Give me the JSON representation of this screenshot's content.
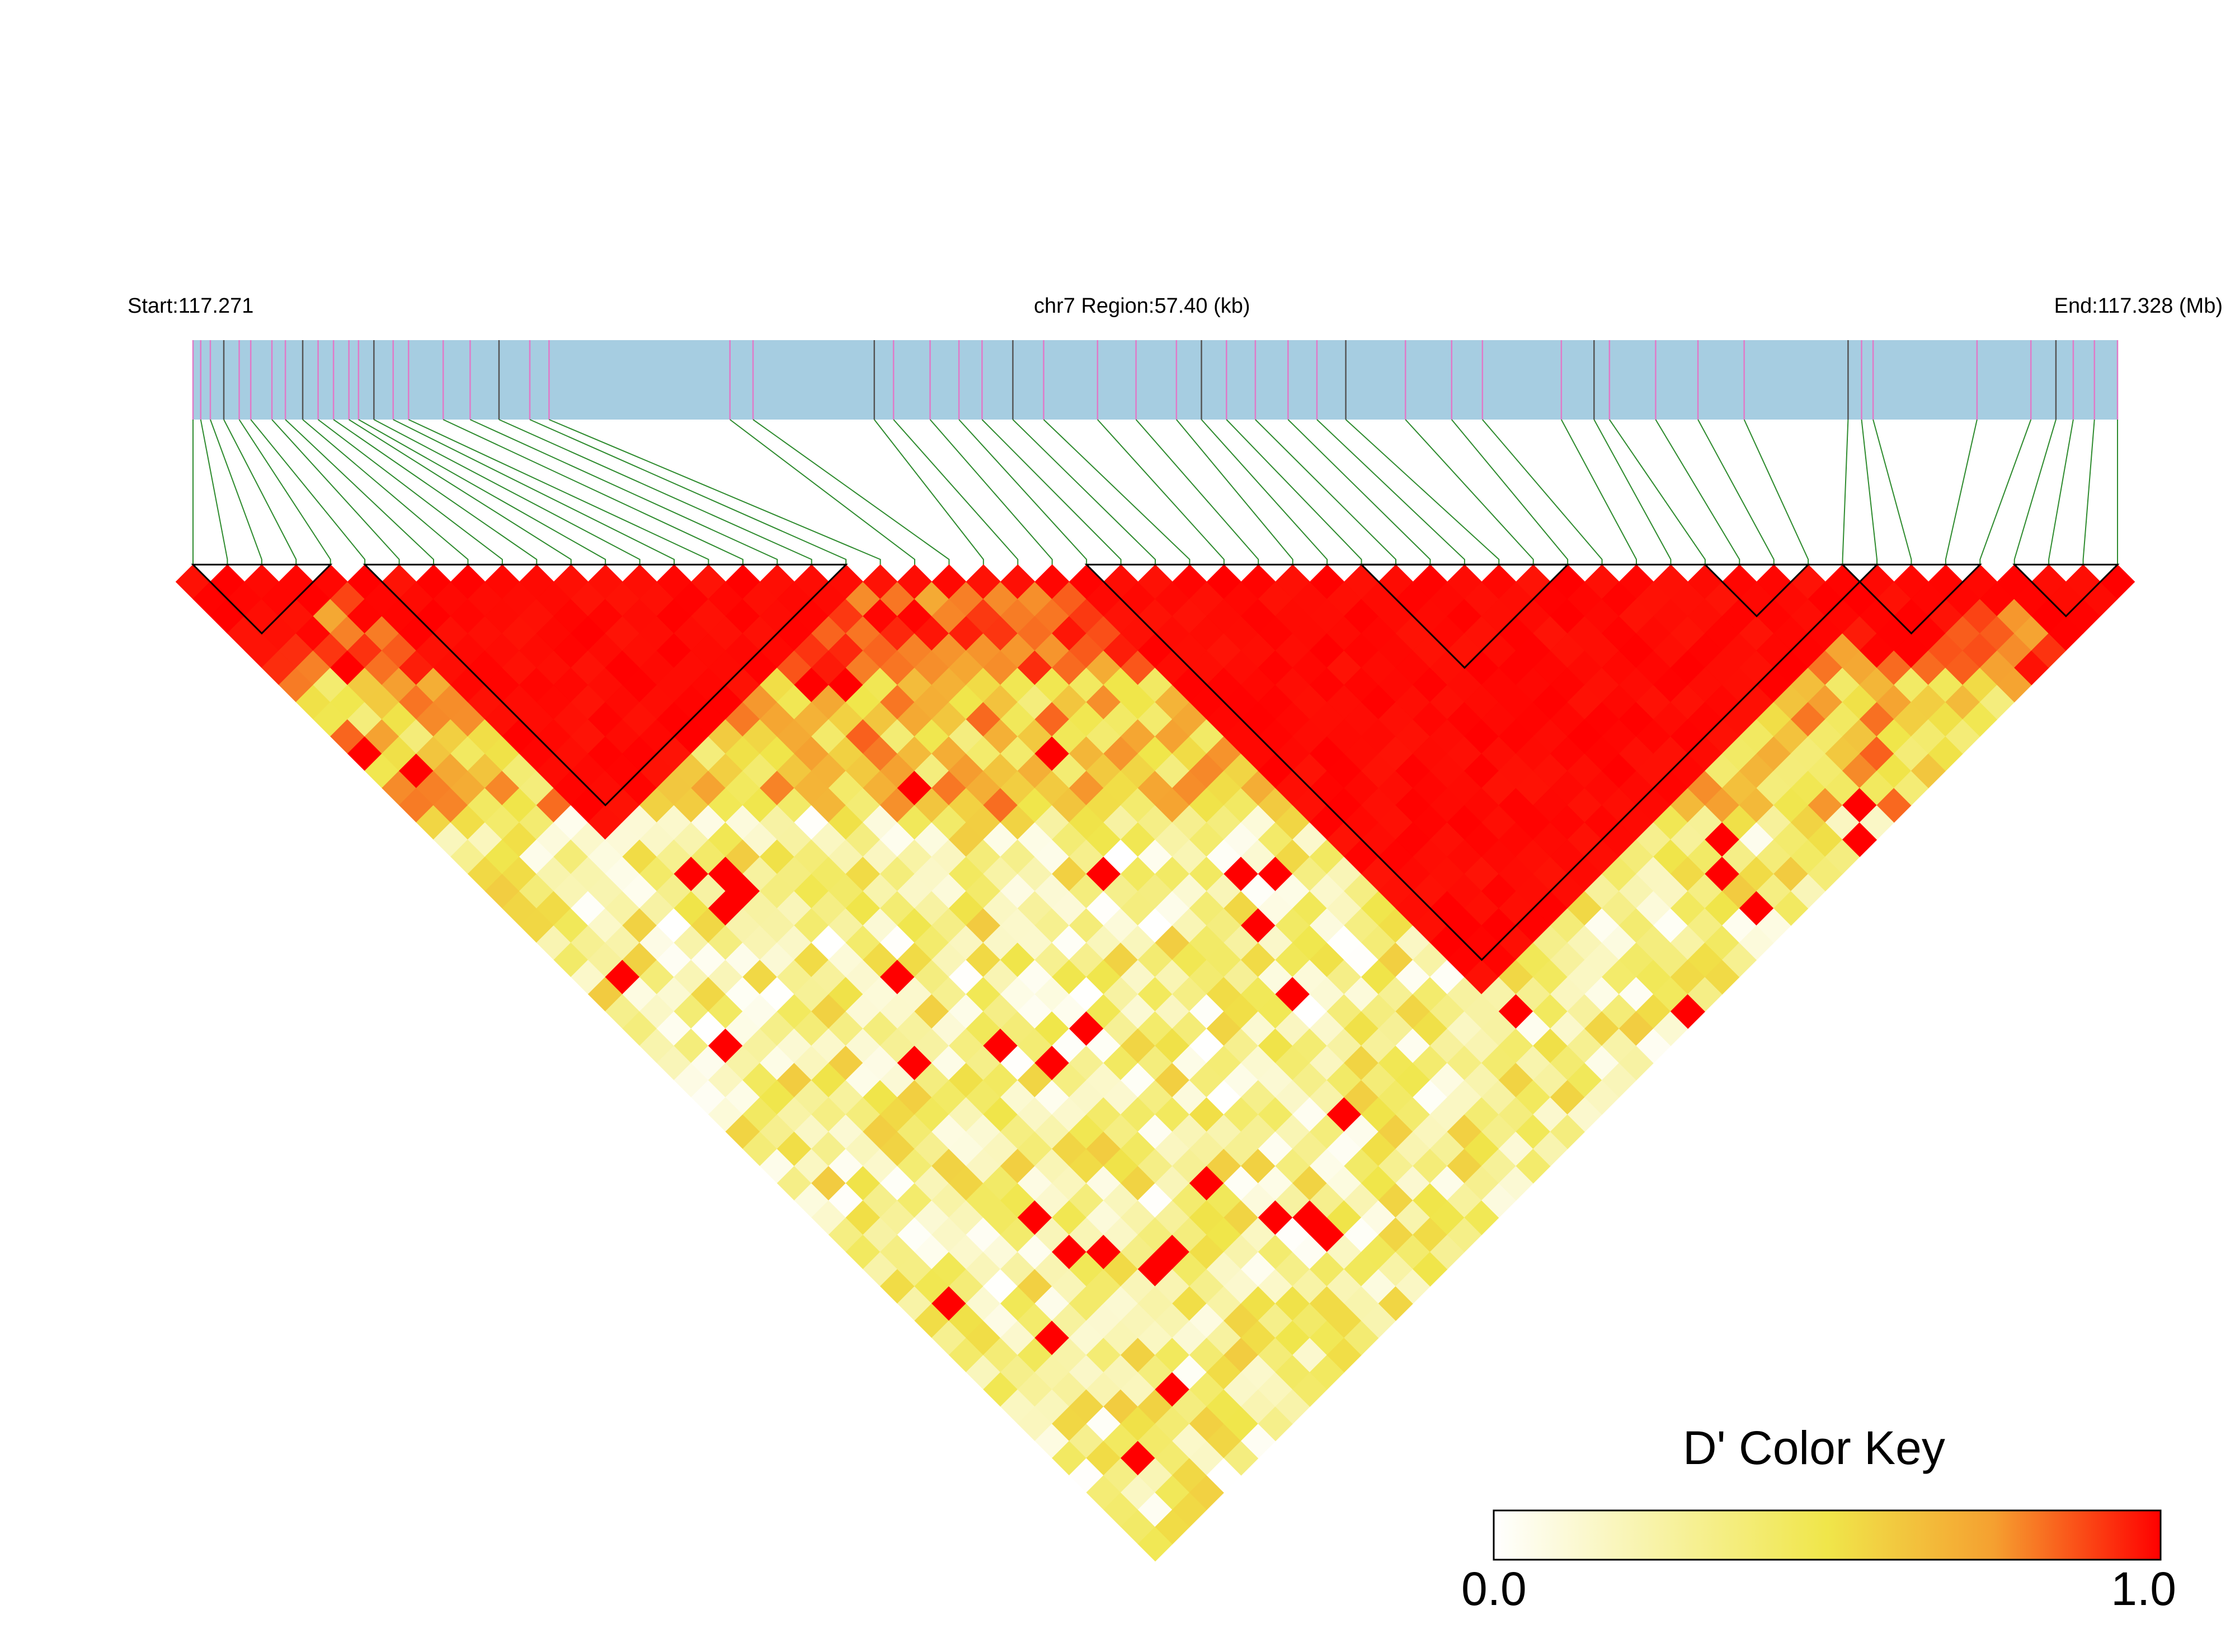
{
  "labels": {
    "start": "Start:117.271",
    "region": "chr7 Region:57.40 (kb)",
    "end": "End:117.328 (Mb)"
  },
  "color_key": {
    "title": "D' Color Key",
    "min_label": "0.0",
    "max_label": "1.0",
    "colors": [
      "#ffffff",
      "#f0e64a",
      "#f5a030",
      "#ff0000"
    ]
  },
  "colors": {
    "track": "#a6cde1",
    "snp_tick_pink": "#e07ac8",
    "snp_tick_dark": "#555555",
    "connector": "#2e8b2e",
    "block_outline": "#000000"
  },
  "chart_data": {
    "type": "heatmap",
    "title": "",
    "value_name": "D'",
    "value_range": [
      0,
      1
    ],
    "region": {
      "chrom": "chr7",
      "start_mb": 117.271,
      "end_mb": 117.328,
      "length_kb": 57.4
    },
    "snp_count": 57,
    "snp_positions_fraction": [
      0.0,
      0.004,
      0.009,
      0.016,
      0.024,
      0.03,
      0.041,
      0.048,
      0.057,
      0.065,
      0.073,
      0.081,
      0.086,
      0.094,
      0.104,
      0.112,
      0.13,
      0.144,
      0.159,
      0.175,
      0.185,
      0.279,
      0.291,
      0.354,
      0.364,
      0.383,
      0.398,
      0.41,
      0.426,
      0.442,
      0.47,
      0.49,
      0.511,
      0.524,
      0.537,
      0.552,
      0.569,
      0.584,
      0.599,
      0.63,
      0.654,
      0.67,
      0.711,
      0.728,
      0.736,
      0.76,
      0.782,
      0.806,
      0.86,
      0.867,
      0.873,
      0.927,
      0.955,
      0.968,
      0.977,
      0.988,
      1.0
    ],
    "ld_blocks": [
      [
        0,
        4
      ],
      [
        5,
        19
      ],
      [
        26,
        49
      ],
      [
        34,
        40
      ],
      [
        44,
        47
      ],
      [
        48,
        52
      ],
      [
        53,
        56
      ]
    ],
    "dprime_pattern": "high D' (red) near diagonal within haplotype blocks, decaying to low (white/yellow) for distant SNP pairs"
  }
}
